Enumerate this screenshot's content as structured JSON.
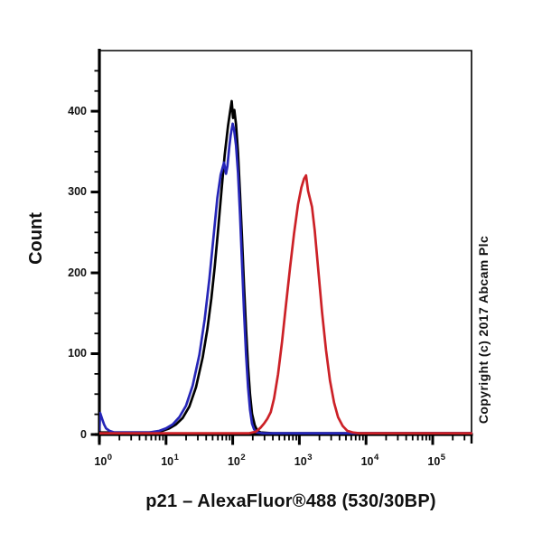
{
  "chart_data": {
    "type": "line",
    "subtype": "flow-cytometry-histogram-overlay",
    "title": "p21 – AlexaFluor®488 (530/30BP)",
    "ylabel": "Count",
    "copyright": "Copyright (c) 2017 Abcam Plc",
    "legend": "none",
    "grid": false,
    "x_axis": {
      "scale": "log10",
      "tick_base": "10",
      "tick_exponents": [
        0,
        1,
        2,
        3,
        4,
        5
      ],
      "min_exponent": 0,
      "max_exponent": 5.58
    },
    "y_axis": {
      "ticks": [
        0,
        100,
        200,
        300,
        400
      ],
      "minor_step": 25,
      "min": 0,
      "max": 475
    },
    "axis_color": "#000000",
    "series": [
      {
        "name": "black-curve",
        "color": "#000000",
        "peak": {
          "x_log10": 1.985,
          "count": 412
        },
        "points": [
          [
            0,
            2
          ],
          [
            0.3,
            2
          ],
          [
            0.6,
            2
          ],
          [
            0.8,
            2
          ],
          [
            0.95,
            4
          ],
          [
            1.05,
            7
          ],
          [
            1.15,
            12
          ],
          [
            1.25,
            20
          ],
          [
            1.35,
            34
          ],
          [
            1.45,
            58
          ],
          [
            1.55,
            95
          ],
          [
            1.62,
            130
          ],
          [
            1.68,
            168
          ],
          [
            1.73,
            207
          ],
          [
            1.78,
            252
          ],
          [
            1.83,
            300
          ],
          [
            1.88,
            345
          ],
          [
            1.93,
            381
          ],
          [
            1.96,
            398
          ],
          [
            1.985,
            412
          ],
          [
            2.005,
            391
          ],
          [
            2.025,
            401
          ],
          [
            2.05,
            383
          ],
          [
            2.08,
            348
          ],
          [
            2.11,
            298
          ],
          [
            2.14,
            243
          ],
          [
            2.17,
            185
          ],
          [
            2.2,
            130
          ],
          [
            2.23,
            84
          ],
          [
            2.26,
            49
          ],
          [
            2.29,
            25
          ],
          [
            2.33,
            11
          ],
          [
            2.37,
            4
          ],
          [
            2.42,
            2
          ],
          [
            2.6,
            1
          ],
          [
            3,
            1
          ],
          [
            3.5,
            1
          ],
          [
            4,
            1
          ],
          [
            4.5,
            1
          ],
          [
            5,
            1
          ],
          [
            5.58,
            1
          ]
        ]
      },
      {
        "name": "blue-curve",
        "color": "#2626b8",
        "peak": {
          "x_log10": 2.0,
          "count": 384
        },
        "points": [
          [
            0,
            5
          ],
          [
            0.012,
            26
          ],
          [
            0.04,
            19
          ],
          [
            0.07,
            12
          ],
          [
            0.1,
            7
          ],
          [
            0.15,
            4
          ],
          [
            0.22,
            2
          ],
          [
            0.5,
            2
          ],
          [
            0.75,
            2
          ],
          [
            0.9,
            4
          ],
          [
            1.0,
            7
          ],
          [
            1.1,
            12
          ],
          [
            1.2,
            21
          ],
          [
            1.3,
            35
          ],
          [
            1.4,
            60
          ],
          [
            1.5,
            98
          ],
          [
            1.58,
            142
          ],
          [
            1.65,
            192
          ],
          [
            1.71,
            242
          ],
          [
            1.77,
            292
          ],
          [
            1.82,
            321
          ],
          [
            1.87,
            336
          ],
          [
            1.9,
            322
          ],
          [
            1.92,
            331
          ],
          [
            1.95,
            356
          ],
          [
            1.97,
            370
          ],
          [
            2.0,
            384
          ],
          [
            2.02,
            377
          ],
          [
            2.05,
            357
          ],
          [
            2.08,
            323
          ],
          [
            2.11,
            272
          ],
          [
            2.14,
            212
          ],
          [
            2.17,
            152
          ],
          [
            2.2,
            98
          ],
          [
            2.23,
            58
          ],
          [
            2.26,
            30
          ],
          [
            2.29,
            13
          ],
          [
            2.32,
            6
          ],
          [
            2.36,
            2
          ],
          [
            2.45,
            1
          ],
          [
            3,
            1
          ],
          [
            4,
            1
          ],
          [
            5,
            1
          ],
          [
            5.58,
            1
          ]
        ]
      },
      {
        "name": "red-curve",
        "color": "#cc2127",
        "peak": {
          "x_log10": 3.1,
          "count": 320
        },
        "points": [
          [
            0,
            1
          ],
          [
            0.5,
            1
          ],
          [
            1,
            1
          ],
          [
            1.5,
            1
          ],
          [
            2,
            1
          ],
          [
            2.25,
            1
          ],
          [
            2.35,
            3
          ],
          [
            2.42,
            8
          ],
          [
            2.47,
            13
          ],
          [
            2.52,
            19
          ],
          [
            2.57,
            27
          ],
          [
            2.62,
            44
          ],
          [
            2.68,
            74
          ],
          [
            2.74,
            114
          ],
          [
            2.8,
            160
          ],
          [
            2.86,
            206
          ],
          [
            2.92,
            248
          ],
          [
            2.98,
            284
          ],
          [
            3.03,
            305
          ],
          [
            3.07,
            316
          ],
          [
            3.1,
            320
          ],
          [
            3.13,
            301
          ],
          [
            3.16,
            291
          ],
          [
            3.19,
            281
          ],
          [
            3.23,
            252
          ],
          [
            3.28,
            206
          ],
          [
            3.34,
            151
          ],
          [
            3.4,
            104
          ],
          [
            3.46,
            66
          ],
          [
            3.52,
            39
          ],
          [
            3.58,
            21
          ],
          [
            3.65,
            10
          ],
          [
            3.72,
            4
          ],
          [
            3.8,
            2
          ],
          [
            3.9,
            1
          ],
          [
            4.2,
            1
          ],
          [
            4.6,
            1
          ],
          [
            5,
            1
          ],
          [
            5.58,
            1
          ]
        ]
      }
    ]
  }
}
